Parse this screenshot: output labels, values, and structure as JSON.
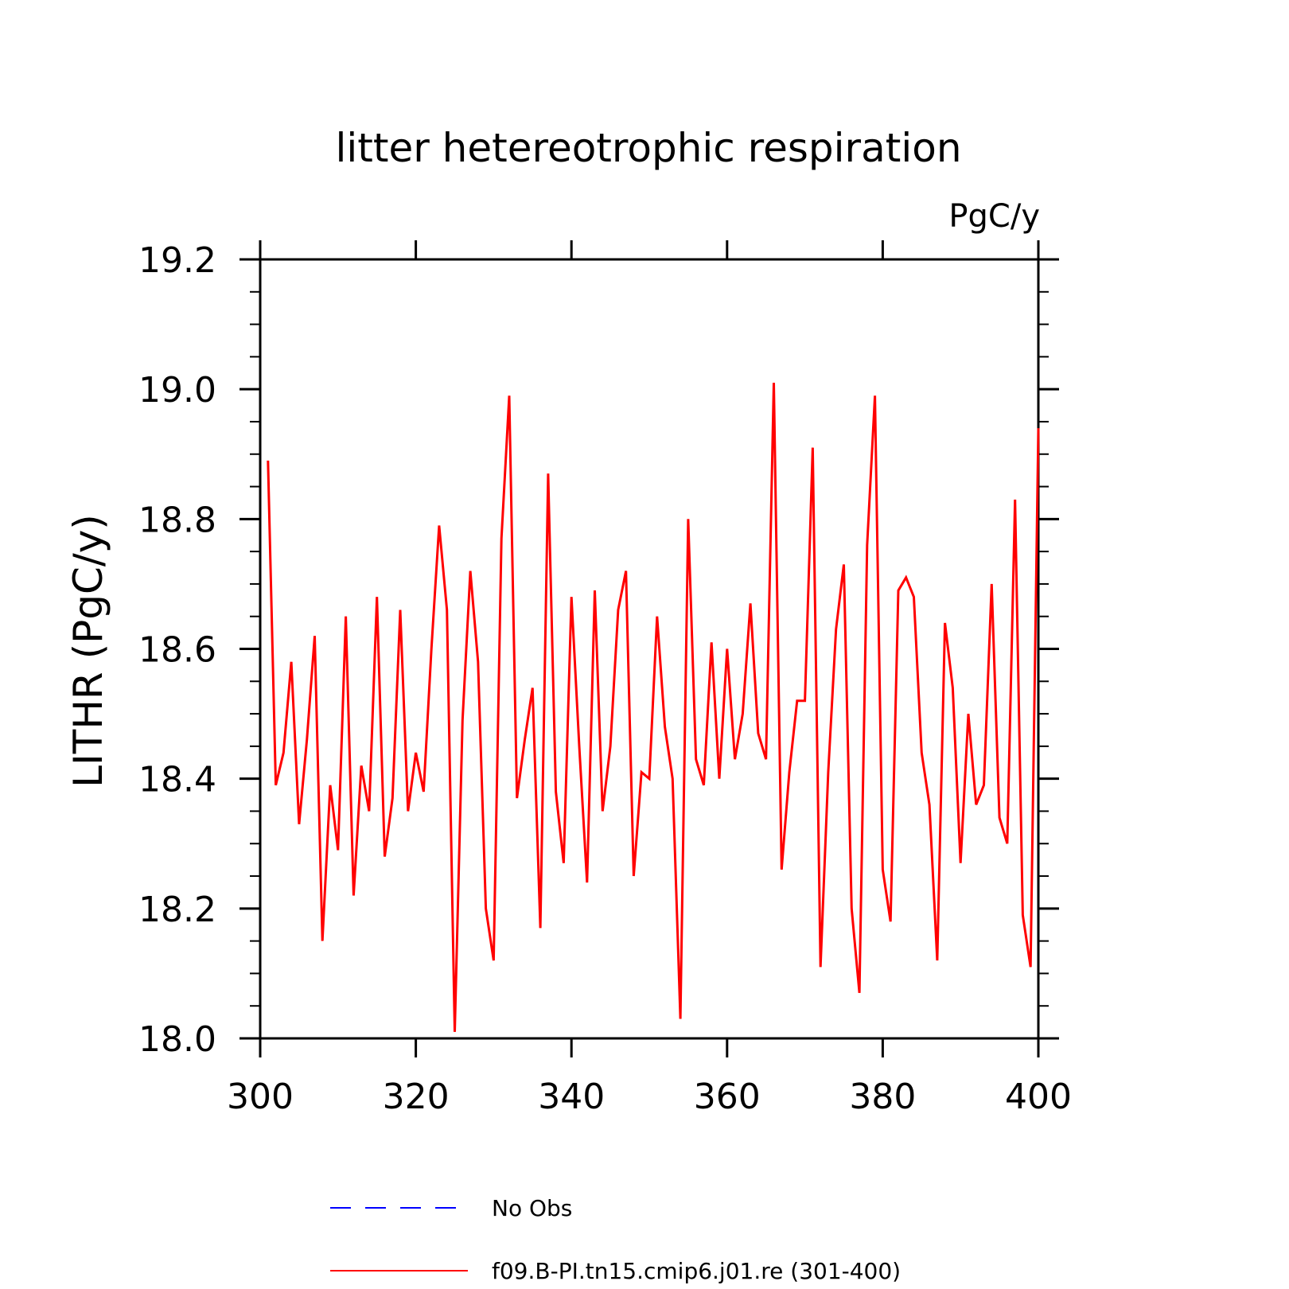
{
  "chart_data": {
    "type": "line",
    "title": "litter hetereotrophic respiration",
    "units_label": "PgC/y",
    "ylabel": "LITHR  (PgC/y)",
    "xlabel": "",
    "xlim": [
      300,
      400
    ],
    "ylim": [
      18.0,
      19.2
    ],
    "x_major_ticks": [
      300,
      320,
      340,
      360,
      380,
      400
    ],
    "x_tick_labels": [
      "300",
      "320",
      "340",
      "360",
      "380",
      "400"
    ],
    "y_major_ticks": [
      18.0,
      18.2,
      18.4,
      18.6,
      18.8,
      19.0,
      19.2
    ],
    "y_tick_labels": [
      "18.0",
      "18.2",
      "18.4",
      "18.6",
      "18.8",
      "19.0",
      "19.2"
    ],
    "y_minor_step": 0.05,
    "grid": false,
    "legend": [
      {
        "label": "No Obs",
        "color": "#0000ff",
        "style": "dashed"
      },
      {
        "label": "f09.B-PI.tn15.cmip6.j01.re (301-400)",
        "color": "#ff0000",
        "style": "solid"
      }
    ],
    "series": [
      {
        "name": "f09.B-PI.tn15.cmip6.j01.re (301-400)",
        "color": "#ff0000",
        "x_start": 301,
        "x_step": 1,
        "values": [
          18.89,
          18.39,
          18.44,
          18.58,
          18.33,
          18.46,
          18.62,
          18.15,
          18.39,
          18.29,
          18.65,
          18.22,
          18.42,
          18.35,
          18.68,
          18.28,
          18.37,
          18.66,
          18.35,
          18.44,
          18.38,
          18.6,
          18.79,
          18.66,
          18.01,
          18.49,
          18.72,
          18.58,
          18.2,
          18.12,
          18.77,
          18.99,
          18.37,
          18.46,
          18.54,
          18.17,
          18.87,
          18.38,
          18.27,
          18.68,
          18.45,
          18.24,
          18.69,
          18.35,
          18.45,
          18.66,
          18.72,
          18.25,
          18.41,
          18.4,
          18.65,
          18.48,
          18.4,
          18.03,
          18.8,
          18.43,
          18.39,
          18.61,
          18.4,
          18.6,
          18.43,
          18.5,
          18.67,
          18.47,
          18.43,
          19.01,
          18.26,
          18.41,
          18.52,
          18.52,
          18.91,
          18.11,
          18.41,
          18.63,
          18.73,
          18.2,
          18.07,
          18.76,
          18.99,
          18.26,
          18.18,
          18.69,
          18.71,
          18.68,
          18.44,
          18.36,
          18.12,
          18.64,
          18.54,
          18.27,
          18.5,
          18.36,
          18.39,
          18.7,
          18.34,
          18.3,
          18.83,
          18.19,
          18.11,
          18.94
        ]
      }
    ]
  }
}
